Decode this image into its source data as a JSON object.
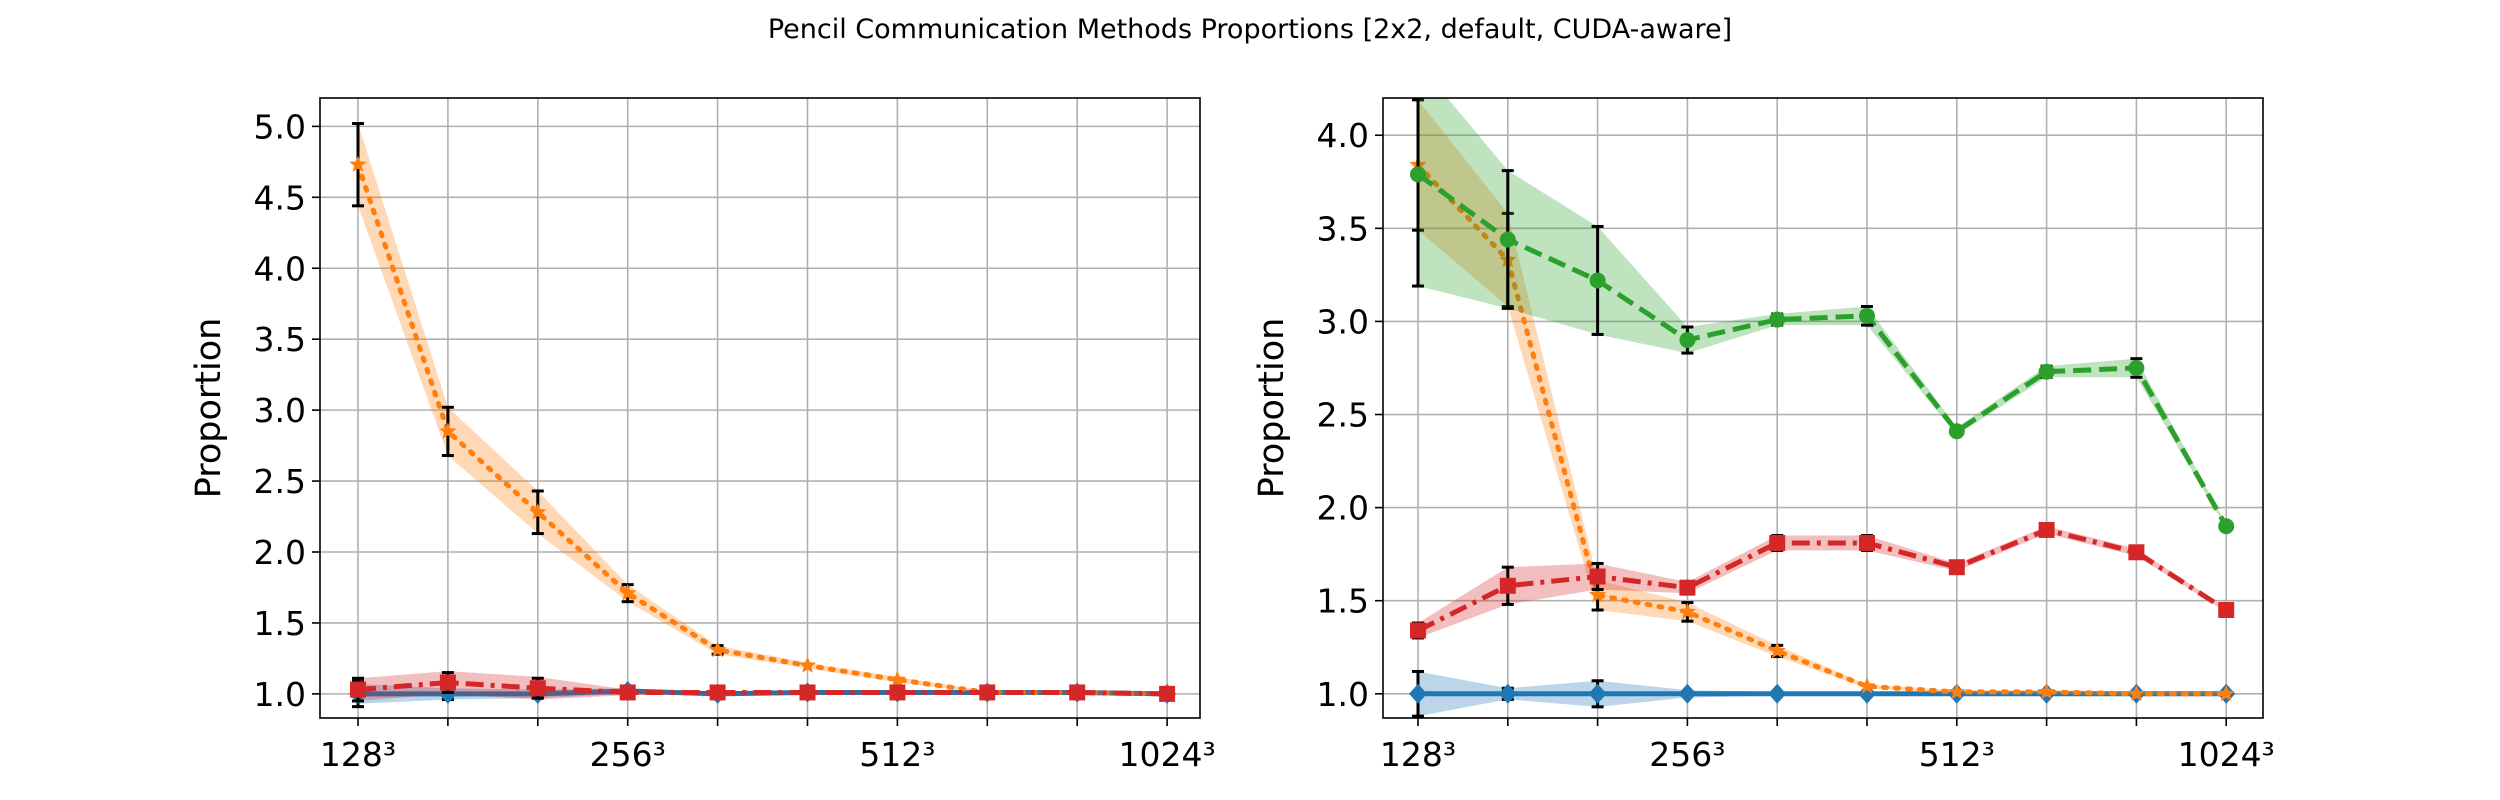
{
  "title": "Pencil Communication Methods Proportions [2x2, default, CUDA-aware]",
  "colors": {
    "blue": "#1f77b4",
    "orange": "#ff7f0e",
    "green": "#2ca02c",
    "red": "#d62728",
    "grid": "#b0b0b0",
    "errorbar": "#000000"
  },
  "chart_data": [
    {
      "type": "line",
      "ylabel": "Proportion",
      "xlabel": "",
      "x_tick_labels": [
        "128³",
        "256³",
        "512³",
        "1024³"
      ],
      "x_tick_index": [
        0,
        3,
        6,
        9
      ],
      "categories": [
        "128³",
        "",
        "",
        "256³",
        "",
        "",
        "512³",
        "",
        "",
        "1024³"
      ],
      "ylim": [
        0.83,
        5.2
      ],
      "y_ticks": [
        1.0,
        1.5,
        2.0,
        2.5,
        3.0,
        3.5,
        4.0,
        4.5,
        5.0
      ],
      "grid": true,
      "series": [
        {
          "color": "#1f77b4",
          "style": "solid",
          "marker": "diamond",
          "values": [
            1.0,
            1.0,
            1.0,
            1.02,
            1.0,
            1.01,
            1.01,
            1.01,
            1.01,
            1.0
          ],
          "err": [
            0.09,
            0.04,
            0.03,
            0.02,
            0.01,
            0.01,
            0.01,
            0.01,
            0.01,
            0.01
          ],
          "band": [
            0.07,
            0.04,
            0.03,
            0.02,
            0.01,
            0.01,
            0.01,
            0.01,
            0.01,
            0.01
          ]
        },
        {
          "color": "#ff7f0e",
          "style": "dotted",
          "marker": "star",
          "values": [
            4.73,
            2.85,
            2.28,
            1.71,
            1.31,
            1.2,
            1.1,
            1.01,
            1.01,
            1.0
          ],
          "err": [
            0.29,
            0.17,
            0.15,
            0.06,
            0.03,
            0.02,
            0.02,
            0.01,
            0.01,
            0.01
          ],
          "band": [
            0.29,
            0.17,
            0.15,
            0.06,
            0.03,
            0.02,
            0.02,
            0.01,
            0.01,
            0.01
          ]
        },
        {
          "color": "#d62728",
          "style": "dashdot",
          "marker": "square",
          "values": [
            1.03,
            1.08,
            1.04,
            1.01,
            1.01,
            1.01,
            1.01,
            1.01,
            1.01,
            1.0
          ],
          "err": [
            0.08,
            0.07,
            0.07,
            0.02,
            0.01,
            0.01,
            0.01,
            0.01,
            0.01,
            0.01
          ],
          "band": [
            0.08,
            0.08,
            0.08,
            0.02,
            0.01,
            0.01,
            0.01,
            0.01,
            0.01,
            0.01
          ]
        }
      ]
    },
    {
      "type": "line",
      "ylabel": "Proportion",
      "xlabel": "",
      "x_tick_labels": [
        "128³",
        "256³",
        "512³",
        "1024³"
      ],
      "x_tick_index": [
        0,
        3,
        6,
        9
      ],
      "categories": [
        "128³",
        "",
        "",
        "256³",
        "",
        "",
        "512³",
        "",
        "",
        "1024³"
      ],
      "ylim": [
        0.87,
        4.2
      ],
      "y_ticks": [
        1.0,
        1.5,
        2.0,
        2.5,
        3.0,
        3.5,
        4.0
      ],
      "grid": true,
      "series": [
        {
          "color": "#1f77b4",
          "style": "solid",
          "marker": "diamond",
          "values": [
            1.0,
            1.0,
            1.0,
            1.0,
            1.0,
            1.0,
            1.0,
            1.0,
            1.0,
            1.0
          ],
          "err": [
            0.12,
            0.03,
            0.07,
            0.02,
            0.01,
            0.01,
            0.01,
            0.01,
            0.01,
            0.01
          ],
          "band": [
            0.12,
            0.03,
            0.07,
            0.02,
            0.01,
            0.01,
            0.01,
            0.01,
            0.01,
            0.01
          ]
        },
        {
          "color": "#ff7f0e",
          "style": "dotted",
          "marker": "star",
          "values": [
            3.84,
            3.33,
            1.53,
            1.44,
            1.23,
            1.04,
            1.01,
            1.01,
            1.0,
            1.0
          ],
          "err": [
            0.35,
            0.25,
            0.08,
            0.05,
            0.03,
            0.01,
            0.01,
            0.01,
            0.01,
            0.01
          ],
          "band": [
            0.35,
            0.25,
            0.08,
            0.05,
            0.03,
            0.01,
            0.01,
            0.01,
            0.01,
            0.01
          ]
        },
        {
          "color": "#2ca02c",
          "style": "dashed",
          "marker": "circle",
          "values": [
            3.79,
            3.44,
            3.22,
            2.9,
            3.01,
            3.03,
            2.41,
            2.73,
            2.75,
            1.9
          ],
          "err": [
            0.6,
            0.37,
            0.29,
            0.07,
            0.03,
            0.05,
            0.02,
            0.03,
            0.05,
            0.01
          ],
          "band": [
            0.6,
            0.37,
            0.29,
            0.07,
            0.03,
            0.05,
            0.02,
            0.03,
            0.05,
            0.01
          ]
        },
        {
          "color": "#d62728",
          "style": "dashdot",
          "marker": "square",
          "values": [
            1.34,
            1.58,
            1.63,
            1.57,
            1.81,
            1.81,
            1.68,
            1.88,
            1.76,
            1.45
          ],
          "err": [
            0.04,
            0.1,
            0.07,
            0.03,
            0.04,
            0.04,
            0.02,
            0.02,
            0.02,
            0.01
          ],
          "band": [
            0.04,
            0.1,
            0.07,
            0.03,
            0.04,
            0.04,
            0.02,
            0.02,
            0.02,
            0.01
          ]
        }
      ]
    }
  ]
}
